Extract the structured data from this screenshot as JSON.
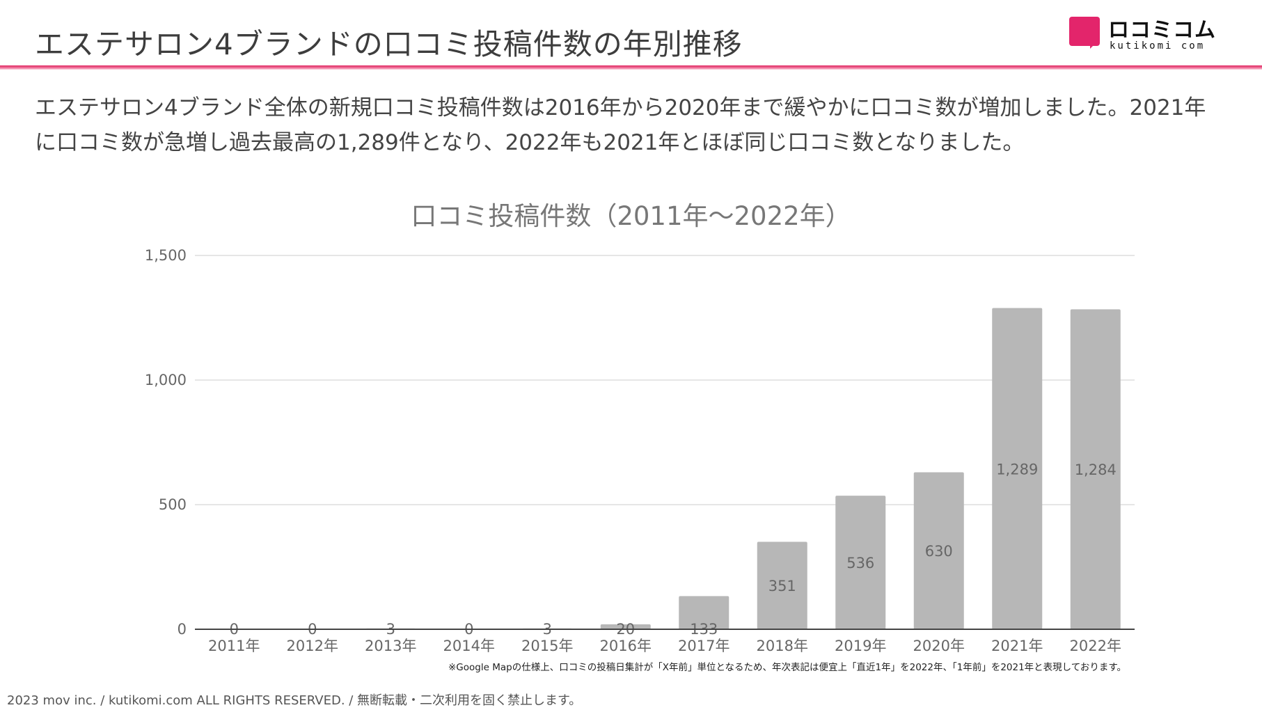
{
  "header": {
    "title": "エステサロン4ブランドの口コミ投稿件数の年別推移",
    "logo_text": "ロコミコム",
    "logo_sub": "kutikomi com"
  },
  "description": "エステサロン4ブランド全体の新規口コミ投稿件数は2016年から2020年まで緩やかに口コミ数が増加しました。2021年に口コミ数が急増し過去最高の1,289件となり、2022年も2021年とほぼ同じ口コミ数となりました。",
  "colors": {
    "accent": "#e3256b",
    "bar": "#b7b7b7",
    "grid": "#dddddd",
    "axis": "#444444"
  },
  "chart_data": {
    "type": "bar",
    "title": "口コミ投稿件数（2011年～2022年）",
    "categories": [
      "2011年",
      "2012年",
      "2013年",
      "2014年",
      "2015年",
      "2016年",
      "2017年",
      "2018年",
      "2019年",
      "2020年",
      "2021年",
      "2022年"
    ],
    "values": [
      0,
      0,
      3,
      0,
      3,
      20,
      133,
      351,
      536,
      630,
      1289,
      1284
    ],
    "value_labels": [
      "0",
      "0",
      "3",
      "0",
      "3",
      "20",
      "133",
      "351",
      "536",
      "630",
      "1,289",
      "1,284"
    ],
    "ylim": [
      0,
      1500
    ],
    "yticks": [
      0,
      500,
      1000,
      1500
    ],
    "ytick_labels": [
      "0",
      "500",
      "1,000",
      "1,500"
    ],
    "xlabel": "",
    "ylabel": "",
    "grid": true,
    "legend": "none"
  },
  "footnote": "※Google Mapの仕様上、口コミの投稿日集計が「X年前」単位となるため、年次表記は便宜上「直近1年」を2022年、「1年前」を2021年と表現しております。",
  "copyright": "2023 mov inc. / kutikomi.com ALL RIGHTS RESERVED. / 無断転載・二次利用を固く禁止します。"
}
